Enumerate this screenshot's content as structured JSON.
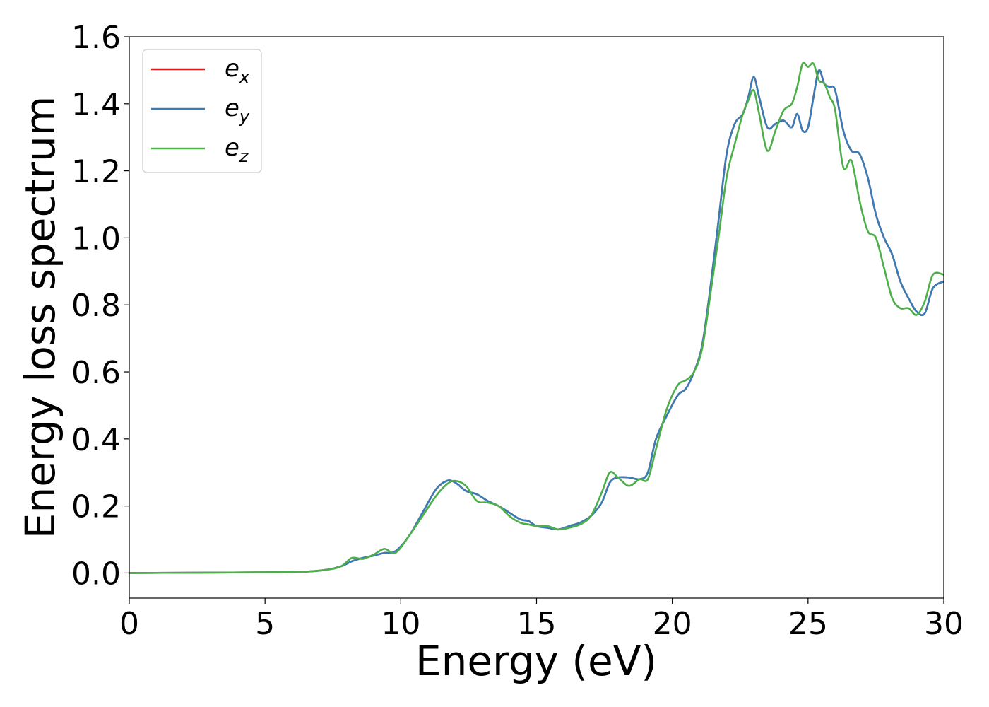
{
  "chart_data": {
    "type": "line",
    "title": "",
    "xlabel": "Energy (eV)",
    "ylabel": "Energy loss spectrum",
    "xlim": [
      0,
      30
    ],
    "ylim": [
      -0.075,
      1.6
    ],
    "xticks": [
      0,
      5,
      10,
      15,
      20,
      25,
      30
    ],
    "xtick_labels": [
      "0",
      "5",
      "10",
      "15",
      "20",
      "25",
      "30"
    ],
    "yticks": [
      0.0,
      0.2,
      0.4,
      0.6,
      0.8,
      1.0,
      1.2,
      1.4,
      1.6
    ],
    "ytick_labels": [
      "0.0",
      "0.2",
      "0.4",
      "0.6",
      "0.8",
      "1.0",
      "1.2",
      "1.4",
      "1.6"
    ],
    "grid": false,
    "legend_position": "top-left",
    "series": [
      {
        "name": "e_x",
        "label_base": "e",
        "label_sub": "x",
        "color": "#e41a1c",
        "x": [
          0,
          5,
          6.5,
          7.3,
          7.8,
          8.2,
          8.6,
          9.0,
          9.4,
          9.8,
          10.3,
          10.8,
          11.3,
          11.7,
          12.0,
          12.4,
          12.8,
          13.2,
          13.6,
          14.0,
          14.4,
          14.7,
          15.0,
          15.4,
          15.8,
          16.2,
          16.6,
          17.0,
          17.4,
          17.7,
          18.0,
          18.4,
          18.8,
          19.1,
          19.4,
          19.8,
          20.2,
          20.5,
          20.8,
          21.1,
          21.4,
          21.7,
          22.0,
          22.3,
          22.6,
          22.8,
          23.0,
          23.2,
          23.5,
          23.8,
          24.1,
          24.4,
          24.6,
          24.8,
          25.0,
          25.2,
          25.4,
          25.6,
          25.8,
          26.0,
          26.3,
          26.6,
          26.9,
          27.2,
          27.5,
          27.8,
          28.1,
          28.4,
          28.7,
          29.0,
          29.3,
          29.6,
          30.0
        ],
        "y": [
          0.0,
          0.002,
          0.004,
          0.01,
          0.02,
          0.035,
          0.045,
          0.052,
          0.06,
          0.065,
          0.11,
          0.18,
          0.25,
          0.275,
          0.27,
          0.245,
          0.235,
          0.215,
          0.2,
          0.18,
          0.16,
          0.155,
          0.14,
          0.135,
          0.13,
          0.14,
          0.15,
          0.17,
          0.21,
          0.27,
          0.285,
          0.285,
          0.28,
          0.3,
          0.4,
          0.47,
          0.53,
          0.55,
          0.6,
          0.68,
          0.85,
          1.05,
          1.25,
          1.34,
          1.37,
          1.42,
          1.48,
          1.42,
          1.33,
          1.34,
          1.35,
          1.33,
          1.37,
          1.32,
          1.33,
          1.42,
          1.5,
          1.46,
          1.45,
          1.44,
          1.32,
          1.26,
          1.25,
          1.18,
          1.07,
          1.0,
          0.95,
          0.87,
          0.82,
          0.78,
          0.775,
          0.85,
          0.87
        ]
      },
      {
        "name": "e_y",
        "label_base": "e",
        "label_sub": "y",
        "color": "#377eb8",
        "x": [
          0,
          5,
          6.5,
          7.3,
          7.8,
          8.2,
          8.6,
          9.0,
          9.4,
          9.8,
          10.3,
          10.8,
          11.3,
          11.7,
          12.0,
          12.4,
          12.8,
          13.2,
          13.6,
          14.0,
          14.4,
          14.7,
          15.0,
          15.4,
          15.8,
          16.2,
          16.6,
          17.0,
          17.4,
          17.7,
          18.0,
          18.4,
          18.8,
          19.1,
          19.4,
          19.8,
          20.2,
          20.5,
          20.8,
          21.1,
          21.4,
          21.7,
          22.0,
          22.3,
          22.6,
          22.8,
          23.0,
          23.2,
          23.5,
          23.8,
          24.1,
          24.4,
          24.6,
          24.8,
          25.0,
          25.2,
          25.4,
          25.6,
          25.8,
          26.0,
          26.3,
          26.6,
          26.9,
          27.2,
          27.5,
          27.8,
          28.1,
          28.4,
          28.7,
          29.0,
          29.3,
          29.6,
          30.0
        ],
        "y": [
          0.0,
          0.002,
          0.004,
          0.01,
          0.02,
          0.035,
          0.045,
          0.052,
          0.06,
          0.065,
          0.11,
          0.18,
          0.25,
          0.275,
          0.27,
          0.245,
          0.235,
          0.215,
          0.2,
          0.18,
          0.16,
          0.155,
          0.14,
          0.135,
          0.13,
          0.14,
          0.15,
          0.17,
          0.21,
          0.27,
          0.285,
          0.285,
          0.28,
          0.3,
          0.4,
          0.47,
          0.53,
          0.55,
          0.6,
          0.68,
          0.85,
          1.05,
          1.25,
          1.34,
          1.37,
          1.42,
          1.48,
          1.42,
          1.33,
          1.34,
          1.35,
          1.33,
          1.37,
          1.32,
          1.33,
          1.42,
          1.5,
          1.46,
          1.45,
          1.44,
          1.32,
          1.26,
          1.25,
          1.18,
          1.07,
          1.0,
          0.95,
          0.87,
          0.82,
          0.78,
          0.775,
          0.85,
          0.87
        ]
      },
      {
        "name": "e_z",
        "label_base": "e",
        "label_sub": "z",
        "color": "#4daf4a",
        "x": [
          0,
          5,
          6.5,
          7.3,
          7.8,
          8.2,
          8.6,
          9.0,
          9.4,
          9.8,
          10.3,
          10.8,
          11.3,
          11.7,
          12.0,
          12.4,
          12.8,
          13.2,
          13.6,
          14.0,
          14.4,
          14.7,
          15.0,
          15.4,
          15.8,
          16.2,
          16.6,
          17.0,
          17.4,
          17.7,
          18.0,
          18.4,
          18.8,
          19.1,
          19.4,
          19.8,
          20.2,
          20.5,
          20.8,
          21.1,
          21.4,
          21.7,
          22.0,
          22.3,
          22.6,
          22.8,
          23.0,
          23.2,
          23.5,
          23.8,
          24.1,
          24.4,
          24.6,
          24.8,
          25.0,
          25.2,
          25.4,
          25.6,
          25.8,
          26.0,
          26.3,
          26.6,
          26.9,
          27.2,
          27.5,
          27.8,
          28.1,
          28.4,
          28.7,
          29.0,
          29.3,
          29.6,
          30.0
        ],
        "y": [
          0.0,
          0.002,
          0.004,
          0.01,
          0.02,
          0.045,
          0.042,
          0.055,
          0.072,
          0.06,
          0.11,
          0.17,
          0.23,
          0.265,
          0.275,
          0.26,
          0.215,
          0.21,
          0.2,
          0.17,
          0.15,
          0.145,
          0.14,
          0.14,
          0.13,
          0.135,
          0.145,
          0.17,
          0.24,
          0.3,
          0.285,
          0.26,
          0.28,
          0.28,
          0.37,
          0.49,
          0.56,
          0.575,
          0.6,
          0.67,
          0.83,
          1.0,
          1.18,
          1.28,
          1.37,
          1.41,
          1.44,
          1.37,
          1.26,
          1.32,
          1.38,
          1.4,
          1.45,
          1.52,
          1.51,
          1.52,
          1.47,
          1.46,
          1.42,
          1.38,
          1.21,
          1.23,
          1.11,
          1.02,
          1.0,
          0.91,
          0.82,
          0.79,
          0.79,
          0.77,
          0.81,
          0.89,
          0.89
        ]
      }
    ]
  }
}
